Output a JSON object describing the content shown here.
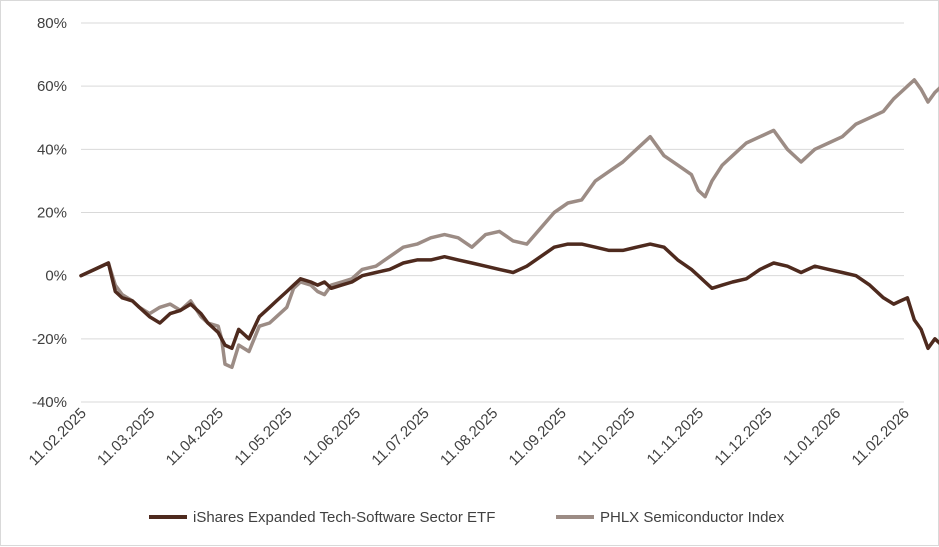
{
  "chart_data": {
    "type": "line",
    "title": "",
    "xlabel": "",
    "ylabel": "",
    "ylim": [
      -40,
      80
    ],
    "yticks": [
      -40,
      -20,
      0,
      20,
      40,
      60,
      80
    ],
    "ytick_labels": [
      "-40%",
      "-20%",
      "0%",
      "20%",
      "40%",
      "60%",
      "80%"
    ],
    "xticks": [
      "11.02.2025",
      "11.03.2025",
      "11.04.2025",
      "11.05.2025",
      "11.06.2025",
      "11.07.2025",
      "11.08.2025",
      "11.09.2025",
      "11.10.2025",
      "11.11.2025",
      "11.12.2025",
      "11.01.2026",
      "11.02.2026"
    ],
    "grid": true,
    "legend_position": "bottom",
    "series": [
      {
        "name": "iShares Expanded Tech-Software Sector ETF",
        "color": "#4e2a1e",
        "x": [
          0,
          0.2,
          0.4,
          0.5,
          0.6,
          0.75,
          0.85,
          1.0,
          1.15,
          1.3,
          1.45,
          1.6,
          1.75,
          1.85,
          2.0,
          2.05,
          2.1,
          2.2,
          2.3,
          2.45,
          2.6,
          2.75,
          2.85,
          3.0,
          3.1,
          3.2,
          3.35,
          3.45,
          3.55,
          3.65,
          3.8,
          3.95,
          4.1,
          4.3,
          4.5,
          4.7,
          4.9,
          5.1,
          5.3,
          5.5,
          5.7,
          5.9,
          6.1,
          6.3,
          6.5,
          6.7,
          6.9,
          7.1,
          7.3,
          7.5,
          7.7,
          7.9,
          8.1,
          8.3,
          8.5,
          8.7,
          8.9,
          9.0,
          9.1,
          9.2,
          9.35,
          9.5,
          9.7,
          9.9,
          10.1,
          10.3,
          10.5,
          10.7,
          10.9,
          11.1,
          11.3,
          11.5,
          11.7,
          11.85,
          11.95,
          12.05,
          12.15,
          12.25,
          12.35,
          12.45,
          12.55
        ],
        "values": [
          0,
          2,
          4,
          -5,
          -7,
          -8,
          -10,
          -13,
          -15,
          -12,
          -11,
          -9,
          -12,
          -15,
          -18,
          -20,
          -22,
          -23,
          -17,
          -20,
          -13,
          -10,
          -8,
          -5,
          -3,
          -1,
          -2,
          -3,
          -2,
          -4,
          -3,
          -2,
          0,
          1,
          2,
          4,
          5,
          5,
          6,
          5,
          4,
          3,
          2,
          1,
          3,
          6,
          9,
          10,
          10,
          9,
          8,
          8,
          9,
          10,
          9,
          5,
          2,
          0,
          -2,
          -4,
          -3,
          -2,
          -1,
          2,
          4,
          3,
          1,
          3,
          2,
          1,
          0,
          -3,
          -7,
          -9,
          -8,
          -7,
          -14,
          -17,
          -23,
          -20,
          -22
        ]
      },
      {
        "name": "PHLX Semiconductor Index",
        "color": "#9c8c85",
        "x": [
          0,
          0.2,
          0.4,
          0.5,
          0.6,
          0.75,
          0.85,
          1.0,
          1.15,
          1.3,
          1.45,
          1.6,
          1.75,
          1.85,
          2.0,
          2.05,
          2.1,
          2.2,
          2.3,
          2.45,
          2.6,
          2.75,
          2.85,
          3.0,
          3.1,
          3.2,
          3.35,
          3.45,
          3.55,
          3.65,
          3.8,
          3.95,
          4.1,
          4.3,
          4.5,
          4.7,
          4.9,
          5.1,
          5.3,
          5.5,
          5.7,
          5.9,
          6.1,
          6.3,
          6.5,
          6.7,
          6.9,
          7.1,
          7.3,
          7.5,
          7.7,
          7.9,
          8.1,
          8.3,
          8.5,
          8.7,
          8.9,
          9.0,
          9.1,
          9.2,
          9.35,
          9.5,
          9.7,
          9.9,
          10.1,
          10.3,
          10.5,
          10.7,
          10.9,
          11.1,
          11.3,
          11.5,
          11.7,
          11.85,
          11.95,
          12.05,
          12.15,
          12.25,
          12.35,
          12.45,
          12.55
        ],
        "values": [
          0,
          2,
          4,
          -3,
          -6,
          -8,
          -10,
          -12,
          -10,
          -9,
          -11,
          -8,
          -13,
          -15,
          -16,
          -20,
          -28,
          -29,
          -22,
          -24,
          -16,
          -15,
          -13,
          -10,
          -4,
          -2,
          -3,
          -5,
          -6,
          -3,
          -2,
          -1,
          2,
          3,
          6,
          9,
          10,
          12,
          13,
          12,
          9,
          13,
          14,
          11,
          10,
          15,
          20,
          23,
          24,
          30,
          33,
          36,
          40,
          44,
          38,
          35,
          32,
          27,
          25,
          30,
          35,
          38,
          42,
          44,
          46,
          40,
          36,
          40,
          42,
          44,
          48,
          50,
          52,
          56,
          58,
          60,
          62,
          59,
          55,
          58,
          60
        ]
      }
    ]
  }
}
